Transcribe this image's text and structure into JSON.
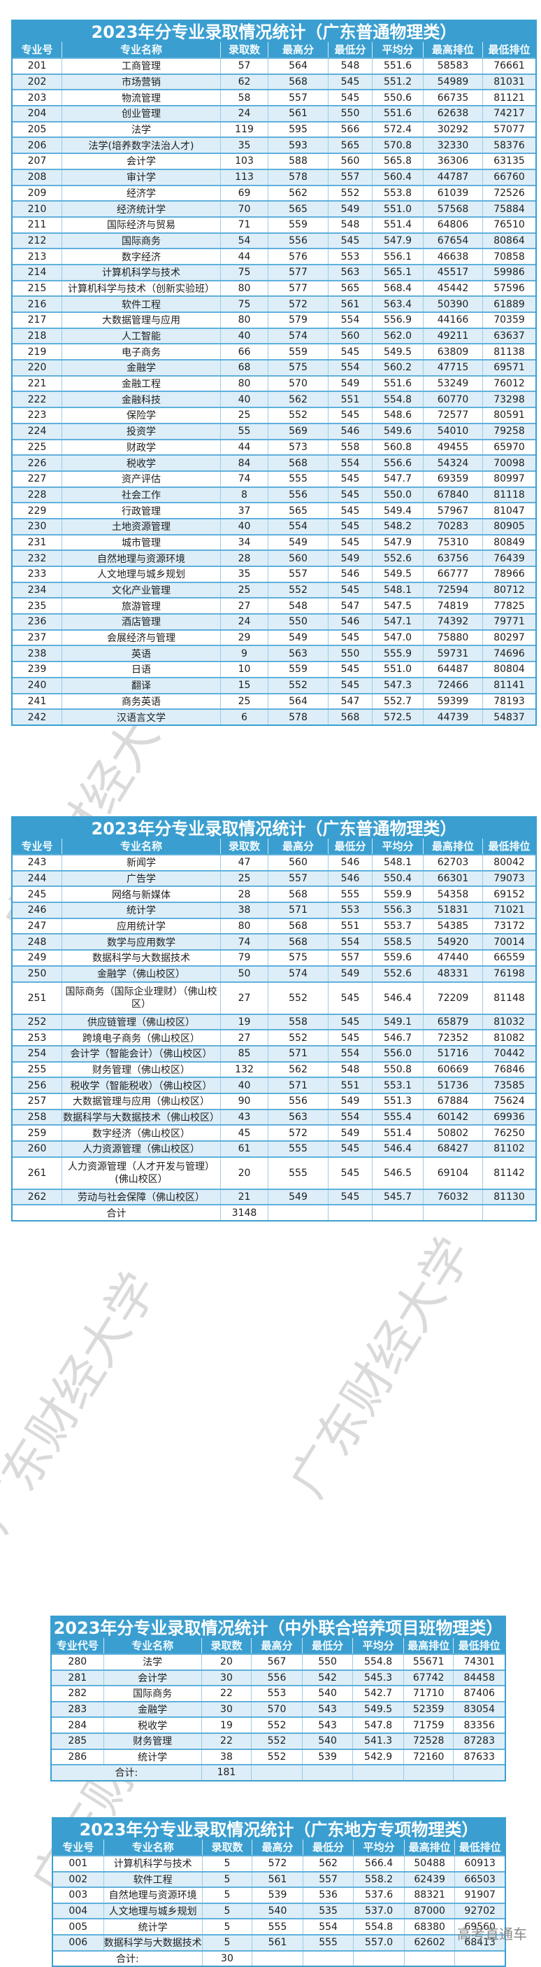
{
  "tables": [
    {
      "title": "2023年分专业录取情况统计（广东普通物理类）",
      "headers": [
        "专业号",
        "专业名称",
        "录取数",
        "最高分",
        "最低分",
        "平均分",
        "最高排位",
        "最低排位"
      ],
      "rows": [
        [
          "201",
          "工商管理",
          "57",
          "564",
          "548",
          "551.6",
          "58583",
          "76661"
        ],
        [
          "202",
          "市场营销",
          "62",
          "568",
          "545",
          "551.2",
          "54989",
          "81031"
        ],
        [
          "203",
          "物流管理",
          "58",
          "557",
          "545",
          "550.6",
          "66735",
          "81121"
        ],
        [
          "204",
          "创业管理",
          "24",
          "561",
          "550",
          "551.6",
          "62638",
          "74217"
        ],
        [
          "205",
          "法学",
          "119",
          "595",
          "566",
          "572.4",
          "30292",
          "57077"
        ],
        [
          "206",
          "法学(培养数字法治人才)",
          "35",
          "593",
          "565",
          "570.8",
          "32330",
          "58376"
        ],
        [
          "207",
          "会计学",
          "103",
          "588",
          "560",
          "565.8",
          "36306",
          "63135"
        ],
        [
          "208",
          "审计学",
          "113",
          "578",
          "557",
          "560.4",
          "44787",
          "66760"
        ],
        [
          "209",
          "经济学",
          "69",
          "562",
          "552",
          "553.8",
          "61039",
          "72526"
        ],
        [
          "210",
          "经济统计学",
          "70",
          "565",
          "549",
          "551.0",
          "57568",
          "75884"
        ],
        [
          "211",
          "国际经济与贸易",
          "71",
          "559",
          "548",
          "551.4",
          "64806",
          "76510"
        ],
        [
          "212",
          "国际商务",
          "54",
          "556",
          "545",
          "547.9",
          "67654",
          "80864"
        ],
        [
          "213",
          "数字经济",
          "44",
          "576",
          "553",
          "556.1",
          "46638",
          "70858"
        ],
        [
          "214",
          "计算机科学与技术",
          "75",
          "577",
          "563",
          "565.1",
          "45517",
          "59986"
        ],
        [
          "215",
          "计算机科学与技术（创新实验班）",
          "80",
          "577",
          "565",
          "568.4",
          "45442",
          "57596"
        ],
        [
          "216",
          "软件工程",
          "75",
          "572",
          "561",
          "563.4",
          "50390",
          "61889"
        ],
        [
          "217",
          "大数据管理与应用",
          "80",
          "579",
          "554",
          "556.9",
          "44166",
          "70359"
        ],
        [
          "218",
          "人工智能",
          "40",
          "574",
          "560",
          "562.0",
          "49211",
          "63637"
        ],
        [
          "219",
          "电子商务",
          "66",
          "559",
          "545",
          "549.5",
          "63809",
          "81138"
        ],
        [
          "220",
          "金融学",
          "68",
          "575",
          "554",
          "560.2",
          "47715",
          "69571"
        ],
        [
          "221",
          "金融工程",
          "80",
          "570",
          "549",
          "551.6",
          "53249",
          "76012"
        ],
        [
          "222",
          "金融科技",
          "40",
          "562",
          "551",
          "554.8",
          "60770",
          "73298"
        ],
        [
          "223",
          "保险学",
          "25",
          "552",
          "545",
          "548.6",
          "72577",
          "80591"
        ],
        [
          "224",
          "投资学",
          "55",
          "569",
          "546",
          "549.6",
          "54010",
          "79258"
        ],
        [
          "225",
          "财政学",
          "44",
          "573",
          "558",
          "560.8",
          "49455",
          "65970"
        ],
        [
          "226",
          "税收学",
          "84",
          "568",
          "554",
          "556.6",
          "54324",
          "70098"
        ],
        [
          "227",
          "资产评估",
          "74",
          "555",
          "545",
          "547.7",
          "69359",
          "80997"
        ],
        [
          "228",
          "社会工作",
          "8",
          "556",
          "545",
          "550.0",
          "67840",
          "81118"
        ],
        [
          "229",
          "行政管理",
          "37",
          "565",
          "545",
          "549.4",
          "57967",
          "81047"
        ],
        [
          "230",
          "土地资源管理",
          "40",
          "554",
          "545",
          "548.2",
          "70283",
          "80905"
        ],
        [
          "231",
          "城市管理",
          "34",
          "549",
          "545",
          "547.9",
          "75310",
          "80849"
        ],
        [
          "232",
          "自然地理与资源环境",
          "28",
          "560",
          "549",
          "552.6",
          "63756",
          "76439"
        ],
        [
          "233",
          "人文地理与城乡规划",
          "35",
          "557",
          "546",
          "549.5",
          "66777",
          "78966"
        ],
        [
          "234",
          "文化产业管理",
          "25",
          "552",
          "545",
          "548.1",
          "72594",
          "80712"
        ],
        [
          "235",
          "旅游管理",
          "27",
          "548",
          "547",
          "547.5",
          "74819",
          "77825"
        ],
        [
          "236",
          "酒店管理",
          "24",
          "550",
          "546",
          "547.1",
          "74392",
          "79771"
        ],
        [
          "237",
          "会展经济与管理",
          "29",
          "549",
          "545",
          "547.0",
          "75880",
          "80297"
        ],
        [
          "238",
          "英语",
          "9",
          "563",
          "550",
          "555.9",
          "59731",
          "74696"
        ],
        [
          "239",
          "日语",
          "10",
          "559",
          "545",
          "551.0",
          "64487",
          "80804"
        ],
        [
          "240",
          "翻译",
          "15",
          "552",
          "545",
          "547.3",
          "72466",
          "81141"
        ],
        [
          "241",
          "商务英语",
          "25",
          "564",
          "547",
          "552.7",
          "59399",
          "78193"
        ],
        [
          "242",
          "汉语言文学",
          "6",
          "578",
          "568",
          "572.5",
          "44739",
          "54837"
        ]
      ]
    },
    {
      "title": "2023年分专业录取情况统计（广东普通物理类）",
      "headers": [
        "专业号",
        "专业名称",
        "录取数",
        "最高分",
        "最低分",
        "平均分",
        "最高排位",
        "最低排位"
      ],
      "rows": [
        [
          "243",
          "新闻学",
          "47",
          "560",
          "546",
          "548.1",
          "62703",
          "80042"
        ],
        [
          "244",
          "广告学",
          "25",
          "557",
          "546",
          "550.4",
          "66301",
          "79073"
        ],
        [
          "245",
          "网络与新媒体",
          "28",
          "568",
          "555",
          "559.9",
          "54358",
          "69152"
        ],
        [
          "246",
          "统计学",
          "38",
          "571",
          "553",
          "556.3",
          "51831",
          "71021"
        ],
        [
          "247",
          "应用统计学",
          "80",
          "568",
          "551",
          "553.7",
          "54385",
          "73172"
        ],
        [
          "248",
          "数学与应用数学",
          "74",
          "568",
          "554",
          "558.5",
          "54920",
          "70014"
        ],
        [
          "249",
          "数据科学与大数据技术",
          "79",
          "575",
          "557",
          "559.6",
          "47440",
          "66559"
        ],
        [
          "250",
          "金融学（佛山校区）",
          "50",
          "574",
          "549",
          "552.6",
          "48331",
          "76198"
        ],
        [
          "251",
          "国际商务（国际企业理财）（佛山校区）",
          "27",
          "552",
          "545",
          "546.4",
          "72209",
          "81148"
        ],
        [
          "252",
          "供应链管理（佛山校区）",
          "19",
          "558",
          "545",
          "549.1",
          "65879",
          "81032"
        ],
        [
          "253",
          "跨境电子商务（佛山校区）",
          "27",
          "552",
          "545",
          "546.7",
          "72352",
          "81082"
        ],
        [
          "254",
          "会计学（智能会计）（佛山校区）",
          "85",
          "571",
          "554",
          "556.0",
          "51716",
          "70442"
        ],
        [
          "255",
          "财务管理（佛山校区）",
          "132",
          "562",
          "548",
          "550.8",
          "60669",
          "76846"
        ],
        [
          "256",
          "税收学（智能税收）（佛山校区）",
          "40",
          "571",
          "551",
          "553.1",
          "51736",
          "73585"
        ],
        [
          "257",
          "大数据管理与应用（佛山校区）",
          "90",
          "556",
          "549",
          "551.3",
          "67884",
          "75624"
        ],
        [
          "258",
          "数据科学与大数据技术（佛山校区）",
          "43",
          "563",
          "554",
          "555.4",
          "60142",
          "69936"
        ],
        [
          "259",
          "数字经济（佛山校区）",
          "45",
          "572",
          "549",
          "551.4",
          "50802",
          "76250"
        ],
        [
          "260",
          "人力资源管理（佛山校区）",
          "61",
          "555",
          "545",
          "546.4",
          "68427",
          "81102"
        ],
        [
          "261",
          "人力资源管理（人才开发与管理）(佛山校区）",
          "20",
          "555",
          "545",
          "546.5",
          "69104",
          "81142"
        ],
        [
          "262",
          "劳动与社会保障（佛山校区）",
          "21",
          "549",
          "545",
          "545.7",
          "76032",
          "81130"
        ]
      ],
      "total_label": "合计",
      "total_value": "3148"
    },
    {
      "title": "2023年分专业录取情况统计（中外联合培养项目班物理类）",
      "headers": [
        "专业代号",
        "专业名称",
        "录取数",
        "最高分",
        "最低分",
        "平均分",
        "最高排位",
        "最低排位"
      ],
      "rows": [
        [
          "280",
          "法学",
          "20",
          "567",
          "550",
          "554.8",
          "55671",
          "74301"
        ],
        [
          "281",
          "会计学",
          "30",
          "556",
          "542",
          "545.3",
          "67742",
          "84458"
        ],
        [
          "282",
          "国际商务",
          "22",
          "553",
          "540",
          "542.7",
          "71710",
          "87406"
        ],
        [
          "283",
          "金融学",
          "30",
          "570",
          "543",
          "549.5",
          "52359",
          "83054"
        ],
        [
          "284",
          "税收学",
          "19",
          "552",
          "543",
          "547.8",
          "71759",
          "83356"
        ],
        [
          "285",
          "财务管理",
          "22",
          "552",
          "540",
          "541.3",
          "72528",
          "87283"
        ],
        [
          "286",
          "统计学",
          "38",
          "552",
          "539",
          "542.9",
          "72160",
          "87633"
        ]
      ],
      "total_label": "合计:",
      "total_value": "181"
    },
    {
      "title": "2023年分专业录取情况统计（广东地方专项物理类）",
      "headers": [
        "专业号",
        "专业名称",
        "录取数",
        "最高分",
        "最低分",
        "平均分",
        "最高排位",
        "最低排位"
      ],
      "rows": [
        [
          "001",
          "计算机科学与技术",
          "5",
          "572",
          "562",
          "566.4",
          "50488",
          "60913"
        ],
        [
          "002",
          "软件工程",
          "5",
          "561",
          "557",
          "558.2",
          "62439",
          "66503"
        ],
        [
          "003",
          "自然地理与资源环境",
          "5",
          "539",
          "536",
          "537.6",
          "88321",
          "91907"
        ],
        [
          "004",
          "人文地理与城乡规划",
          "5",
          "540",
          "535",
          "537.0",
          "87000",
          "92702"
        ],
        [
          "005",
          "统计学",
          "5",
          "555",
          "554",
          "554.8",
          "68380",
          "69560"
        ],
        [
          "006",
          "数据科学与大数据技术",
          "5",
          "561",
          "555",
          "557.0",
          "62602",
          "68413"
        ]
      ],
      "total_label": "合计:",
      "total_value": "30"
    }
  ],
  "watermark_text": "广东财经大学",
  "corner_mark": "高考直通车",
  "colors": {
    "header_blue": "#3a9fd0",
    "alt_row": "#ddeef8",
    "border": "#5fb0dc"
  }
}
